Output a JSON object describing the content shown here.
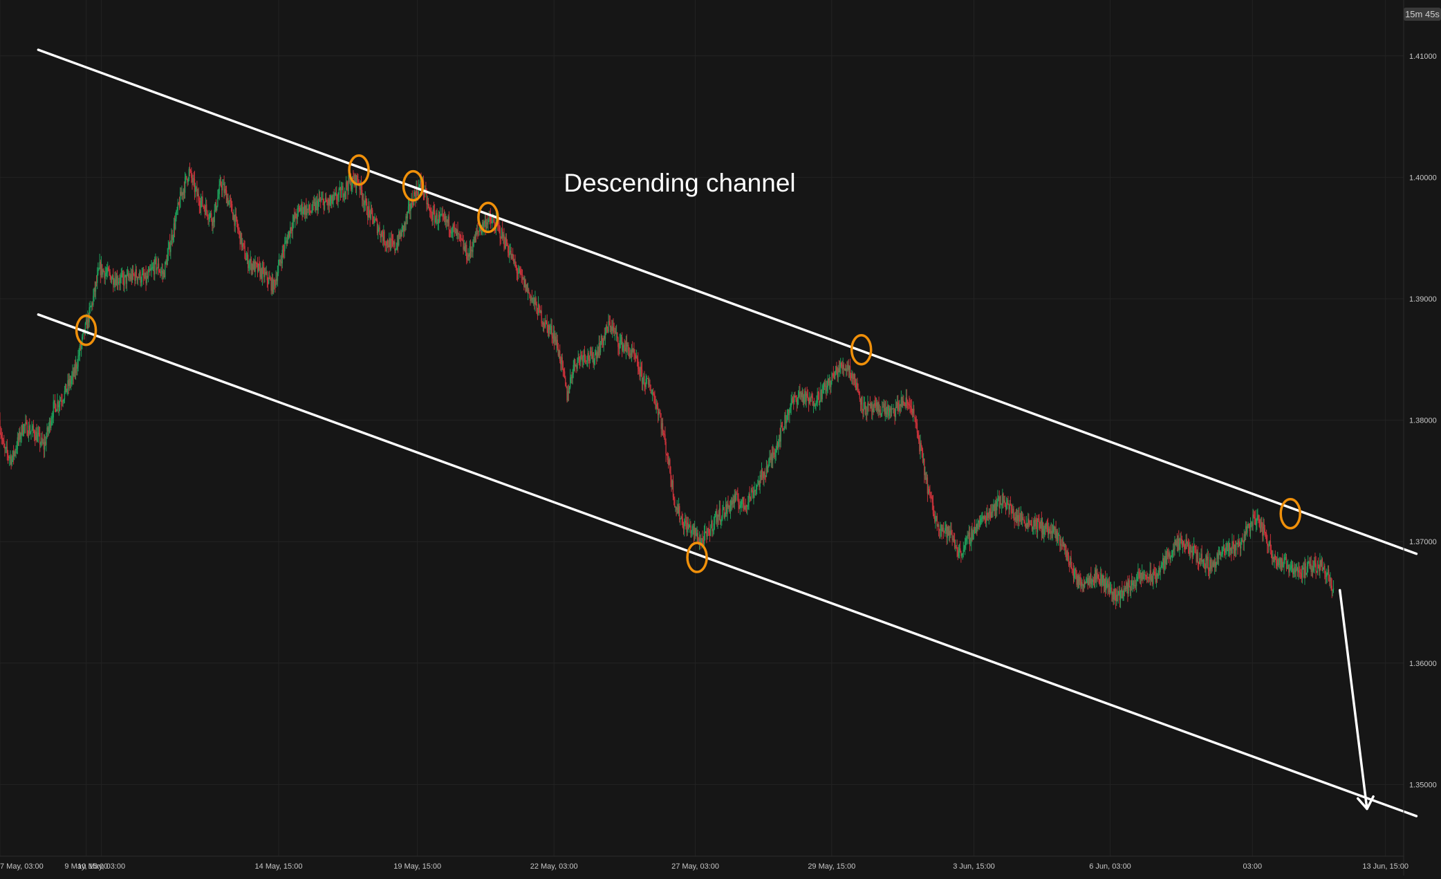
{
  "chart_data": {
    "type": "candlestick",
    "title": "Descending channel",
    "timer_badge": "15m 45s",
    "colors": {
      "background": "#161616",
      "grid": "#232323",
      "up": "#1e9e5a",
      "down": "#c8323a",
      "trendline": "#ffffff",
      "touch_marker": "#f0900a",
      "axis_text": "#c8c8c8",
      "badge_bg": "#3a3a3a"
    },
    "y_axis": {
      "min": 1.3441,
      "max": 1.4146,
      "ticks": [
        "1.41000",
        "1.40000",
        "1.39000",
        "1.38000",
        "1.37000",
        "1.36000",
        "1.35000"
      ],
      "tick_values": [
        1.41,
        1.4,
        1.39,
        1.38,
        1.37,
        1.36,
        1.35
      ]
    },
    "x_axis": {
      "labels": [
        {
          "t": 0,
          "text": "7 May, 03:00"
        },
        {
          "t": 54.1,
          "text": "9 May, 15:00"
        },
        {
          "t": 63.6,
          "text": "10 May, 03:00"
        },
        {
          "t": 174.7,
          "text": "14 May, 15:00"
        },
        {
          "t": 261.7,
          "text": "19 May, 15:00"
        },
        {
          "t": 347.3,
          "text": "22 May, 03:00"
        },
        {
          "t": 435.9,
          "text": "27 May, 03:00"
        },
        {
          "t": 521.4,
          "text": "29 May, 15:00"
        },
        {
          "t": 610.6,
          "text": "3 Jun, 15:00"
        },
        {
          "t": 696.0,
          "text": "6 Jun, 03:00"
        },
        {
          "t": 785.2,
          "text": "03:00"
        },
        {
          "t": 868.6,
          "text": "13 Jun, 15:00"
        }
      ]
    },
    "price_path": [
      [
        0,
        1.38
      ],
      [
        3,
        1.3775
      ],
      [
        8,
        1.3768
      ],
      [
        15,
        1.3795
      ],
      [
        22,
        1.379
      ],
      [
        28,
        1.3778
      ],
      [
        34,
        1.381
      ],
      [
        40,
        1.382
      ],
      [
        47,
        1.3838
      ],
      [
        53,
        1.387
      ],
      [
        58,
        1.3895
      ],
      [
        63,
        1.3925
      ],
      [
        70,
        1.3918
      ],
      [
        78,
        1.3915
      ],
      [
        86,
        1.392
      ],
      [
        92,
        1.3915
      ],
      [
        98,
        1.3928
      ],
      [
        103,
        1.392
      ],
      [
        108,
        1.395
      ],
      [
        114,
        1.3985
      ],
      [
        119,
        1.4005
      ],
      [
        124,
        1.3985
      ],
      [
        129,
        1.3975
      ],
      [
        134,
        1.3965
      ],
      [
        139,
        1.3995
      ],
      [
        144,
        1.398
      ],
      [
        149,
        1.396
      ],
      [
        155,
        1.3932
      ],
      [
        161,
        1.3925
      ],
      [
        166,
        1.392
      ],
      [
        172,
        1.391
      ],
      [
        177,
        1.3935
      ],
      [
        183,
        1.396
      ],
      [
        189,
        1.3975
      ],
      [
        195,
        1.3972
      ],
      [
        201,
        1.398
      ],
      [
        207,
        1.3978
      ],
      [
        213,
        1.3985
      ],
      [
        219,
        1.3995
      ],
      [
        225,
        1.3998
      ],
      [
        230,
        1.3975
      ],
      [
        236,
        1.3962
      ],
      [
        242,
        1.3948
      ],
      [
        248,
        1.3942
      ],
      [
        254,
        1.396
      ],
      [
        260,
        1.3985
      ],
      [
        265,
        1.3995
      ],
      [
        270,
        1.397
      ],
      [
        276,
        1.3965
      ],
      [
        282,
        1.3962
      ],
      [
        288,
        1.395
      ],
      [
        294,
        1.3935
      ],
      [
        300,
        1.3955
      ],
      [
        306,
        1.3965
      ],
      [
        312,
        1.396
      ],
      [
        318,
        1.3945
      ],
      [
        324,
        1.3925
      ],
      [
        330,
        1.391
      ],
      [
        336,
        1.3895
      ],
      [
        342,
        1.388
      ],
      [
        348,
        1.387
      ],
      [
        352,
        1.385
      ],
      [
        356,
        1.382
      ],
      [
        360,
        1.3845
      ],
      [
        366,
        1.3855
      ],
      [
        372,
        1.385
      ],
      [
        378,
        1.3865
      ],
      [
        383,
        1.388
      ],
      [
        388,
        1.3865
      ],
      [
        393,
        1.386
      ],
      [
        398,
        1.3852
      ],
      [
        403,
        1.3835
      ],
      [
        409,
        1.3825
      ],
      [
        414,
        1.3805
      ],
      [
        419,
        1.377
      ],
      [
        424,
        1.373
      ],
      [
        429,
        1.3715
      ],
      [
        434,
        1.371
      ],
      [
        437,
        1.3705
      ],
      [
        440,
        1.37
      ],
      [
        444,
        1.3705
      ],
      [
        449,
        1.372
      ],
      [
        455,
        1.3725
      ],
      [
        461,
        1.3735
      ],
      [
        467,
        1.373
      ],
      [
        473,
        1.3742
      ],
      [
        479,
        1.3755
      ],
      [
        484,
        1.3768
      ],
      [
        490,
        1.379
      ],
      [
        496,
        1.3812
      ],
      [
        502,
        1.3822
      ],
      [
        508,
        1.3815
      ],
      [
        514,
        1.382
      ],
      [
        520,
        1.383
      ],
      [
        526,
        1.3842
      ],
      [
        532,
        1.3845
      ],
      [
        537,
        1.383
      ],
      [
        542,
        1.381
      ],
      [
        548,
        1.3808
      ],
      [
        554,
        1.381
      ],
      [
        560,
        1.3805
      ],
      [
        566,
        1.3815
      ],
      [
        572,
        1.3812
      ],
      [
        577,
        1.378
      ],
      [
        582,
        1.3745
      ],
      [
        587,
        1.3718
      ],
      [
        592,
        1.371
      ],
      [
        597,
        1.3705
      ],
      [
        602,
        1.369
      ],
      [
        607,
        1.37
      ],
      [
        612,
        1.3712
      ],
      [
        618,
        1.372
      ],
      [
        624,
        1.373
      ],
      [
        630,
        1.3735
      ],
      [
        636,
        1.3722
      ],
      [
        642,
        1.3718
      ],
      [
        648,
        1.3715
      ],
      [
        654,
        1.3712
      ],
      [
        660,
        1.3708
      ],
      [
        666,
        1.37
      ],
      [
        672,
        1.368
      ],
      [
        677,
        1.3665
      ],
      [
        682,
        1.367
      ],
      [
        688,
        1.3672
      ],
      [
        694,
        1.3665
      ],
      [
        700,
        1.3655
      ],
      [
        706,
        1.366
      ],
      [
        712,
        1.3668
      ],
      [
        718,
        1.3672
      ],
      [
        724,
        1.367
      ],
      [
        730,
        1.3682
      ],
      [
        736,
        1.3695
      ],
      [
        742,
        1.3698
      ],
      [
        748,
        1.3692
      ],
      [
        754,
        1.3685
      ],
      [
        760,
        1.368
      ],
      [
        766,
        1.369
      ],
      [
        772,
        1.3695
      ],
      [
        778,
        1.3698
      ],
      [
        783,
        1.3712
      ],
      [
        788,
        1.372
      ],
      [
        793,
        1.3708
      ],
      [
        798,
        1.369
      ],
      [
        804,
        1.3682
      ],
      [
        810,
        1.368
      ],
      [
        816,
        1.3675
      ],
      [
        822,
        1.3678
      ],
      [
        828,
        1.3682
      ],
      [
        834,
        1.3672
      ],
      [
        836,
        1.366
      ]
    ],
    "channel_lines": [
      {
        "name": "upper",
        "from": [
          24,
          1.4105
        ],
        "to": [
          888,
          1.369
        ]
      },
      {
        "name": "lower",
        "from": [
          24,
          1.3887
        ],
        "to": [
          888,
          1.3474
        ]
      }
    ],
    "touch_points": [
      [
        54,
        1.3874
      ],
      [
        225,
        1.4006
      ],
      [
        259,
        1.3993
      ],
      [
        306,
        1.3967
      ],
      [
        437,
        1.3687
      ],
      [
        540,
        1.3858
      ],
      [
        809,
        1.3723
      ]
    ],
    "forecast_arrow": {
      "from": [
        840,
        1.366
      ],
      "to": [
        857,
        1.348
      ]
    }
  }
}
